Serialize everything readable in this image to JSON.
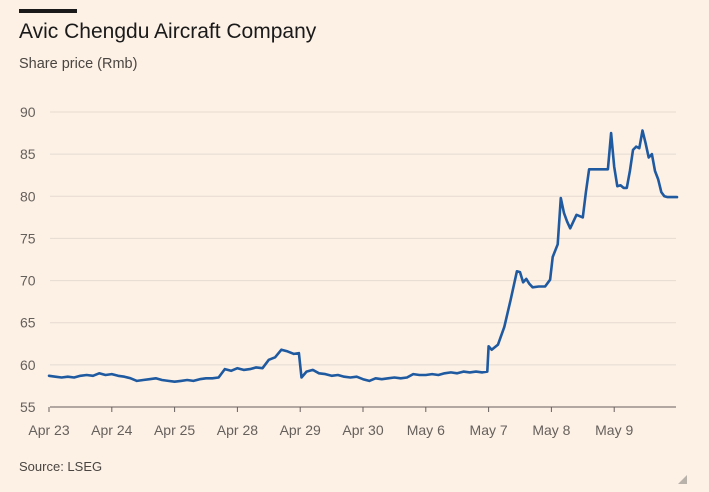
{
  "header": {
    "title": "Avic Chengdu Aircraft Company",
    "subtitle": "Share price (Rmb)"
  },
  "footer": {
    "source": "Source: LSEG"
  },
  "colors": {
    "background": "#fdf1e6",
    "line": "#1f5aa0",
    "gridline": "#e6dbd0",
    "baseline": "#66605c",
    "tick_text": "#66605c"
  },
  "chart_data": {
    "type": "line",
    "title": "Avic Chengdu Aircraft Company",
    "ylabel": "Share price (Rmb)",
    "xlabel": "",
    "ylim": [
      55,
      90
    ],
    "yticks": [
      55,
      60,
      65,
      70,
      75,
      80,
      85,
      90
    ],
    "xlim": [
      0,
      10
    ],
    "xticks": [
      {
        "x": 0,
        "label": "Apr 23"
      },
      {
        "x": 1,
        "label": "Apr 24"
      },
      {
        "x": 2,
        "label": "Apr 25"
      },
      {
        "x": 3,
        "label": "Apr 28"
      },
      {
        "x": 4,
        "label": "Apr 29"
      },
      {
        "x": 5,
        "label": "Apr 30"
      },
      {
        "x": 6,
        "label": "May 6"
      },
      {
        "x": 7,
        "label": "May 7"
      },
      {
        "x": 8,
        "label": "May 8"
      },
      {
        "x": 9,
        "label": "May 9"
      }
    ],
    "grid": true,
    "series": [
      {
        "name": "Avic Chengdu Aircraft Company",
        "x": [
          0,
          0.1,
          0.2,
          0.3,
          0.4,
          0.5,
          0.6,
          0.7,
          0.8,
          0.9,
          1.0,
          1.1,
          1.2,
          1.3,
          1.4,
          1.5,
          1.6,
          1.7,
          1.8,
          1.9,
          2.0,
          2.1,
          2.2,
          2.3,
          2.4,
          2.5,
          2.6,
          2.7,
          2.8,
          2.9,
          3.0,
          3.1,
          3.2,
          3.3,
          3.4,
          3.5,
          3.6,
          3.7,
          3.8,
          3.9,
          3.98,
          4.02,
          4.1,
          4.2,
          4.3,
          4.4,
          4.5,
          4.6,
          4.7,
          4.8,
          4.9,
          5.0,
          5.1,
          5.2,
          5.3,
          5.4,
          5.5,
          5.6,
          5.7,
          5.8,
          5.9,
          6.0,
          6.1,
          6.2,
          6.3,
          6.4,
          6.5,
          6.6,
          6.7,
          6.8,
          6.9,
          6.98,
          7.0,
          7.05,
          7.15,
          7.25,
          7.35,
          7.45,
          7.5,
          7.55,
          7.6,
          7.65,
          7.7,
          7.8,
          7.9,
          7.98,
          8.02,
          8.1,
          8.15,
          8.2,
          8.25,
          8.3,
          8.4,
          8.5,
          8.55,
          8.6,
          8.7,
          8.8,
          8.9,
          8.95,
          9.0,
          9.05,
          9.1,
          9.15,
          9.2,
          9.25,
          9.3,
          9.35,
          9.4,
          9.45,
          9.5,
          9.55,
          9.6,
          9.65,
          9.7,
          9.75,
          9.8,
          9.85,
          9.9,
          10.0
        ],
        "values": [
          58.7,
          58.6,
          58.5,
          58.6,
          58.5,
          58.7,
          58.8,
          58.7,
          59.0,
          58.8,
          58.9,
          58.7,
          58.6,
          58.4,
          58.1,
          58.2,
          58.3,
          58.4,
          58.2,
          58.1,
          58.0,
          58.1,
          58.2,
          58.1,
          58.3,
          58.4,
          58.4,
          58.5,
          59.5,
          59.3,
          59.6,
          59.4,
          59.5,
          59.7,
          59.6,
          60.6,
          60.9,
          61.8,
          61.6,
          61.3,
          61.4,
          58.5,
          59.2,
          59.4,
          59.0,
          58.9,
          58.7,
          58.8,
          58.6,
          58.5,
          58.6,
          58.3,
          58.1,
          58.4,
          58.3,
          58.4,
          58.5,
          58.4,
          58.5,
          58.9,
          58.8,
          58.8,
          58.9,
          58.8,
          59.0,
          59.1,
          59.0,
          59.2,
          59.1,
          59.2,
          59.1,
          59.2,
          62.2,
          61.8,
          62.4,
          64.5,
          67.7,
          71.1,
          71.0,
          69.8,
          70.2,
          69.6,
          69.2,
          69.3,
          69.3,
          70.1,
          72.8,
          74.3,
          79.8,
          78.0,
          77.0,
          76.2,
          77.8,
          77.5,
          80.5,
          83.2,
          83.2,
          83.2,
          83.2,
          87.5,
          83.5,
          81.2,
          81.3,
          81.0,
          81.0,
          83.0,
          85.5,
          85.9,
          85.7,
          87.8,
          86.3,
          84.6,
          85.0,
          83.0,
          82.0,
          80.5,
          80.0,
          79.9,
          79.9,
          79.9
        ]
      }
    ]
  }
}
